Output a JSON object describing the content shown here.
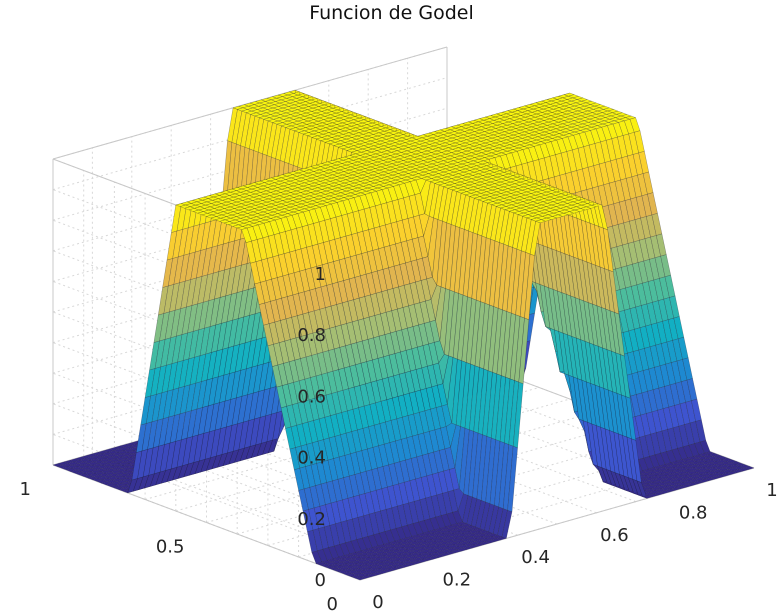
{
  "chart_data": {
    "type": "surface3d",
    "title": "Funcion de Godel",
    "xlabel": "",
    "ylabel": "",
    "zlabel": "",
    "x_range": [
      0,
      1
    ],
    "y_range": [
      0,
      1
    ],
    "z_range": [
      0,
      1
    ],
    "x_ticks": [
      "0",
      "0.2",
      "0.4",
      "0.6",
      "0.8",
      "1"
    ],
    "y_ticks": [
      "0",
      "0.5",
      "1"
    ],
    "z_ticks": [
      "0",
      "0.2",
      "0.4",
      "0.6",
      "0.8",
      "1"
    ],
    "grid": true,
    "colormap": "parula",
    "colormap_stops": [
      "#352a87",
      "#3e54cf",
      "#1e8ad1",
      "#12b0c3",
      "#4dbd9c",
      "#a8be72",
      "#e3b54e",
      "#fbd12c",
      "#f9f50e"
    ],
    "surface": {
      "description": "min(A(x), B(y)) style cross-shaped plateau",
      "x_ridge": {
        "rise": [
          0.38,
          0.45
        ],
        "fall": [
          0.62,
          0.72
        ]
      },
      "y_ridge": {
        "rise": [
          0.15,
          0.38
        ],
        "fall": [
          0.6,
          0.75
        ]
      }
    }
  }
}
